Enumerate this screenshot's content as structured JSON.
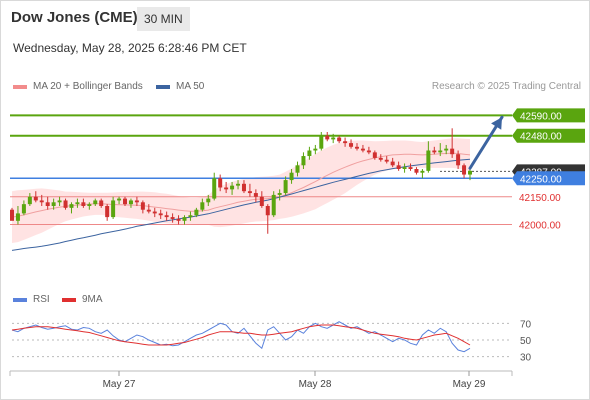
{
  "header": {
    "title": "Dow Jones (CME)",
    "interval": "30 MIN",
    "datetime": "Wednesday, May 28, 2025 6:28:46 PM CET"
  },
  "legend": {
    "ma20_label": "MA 20 + Bollinger Bands",
    "ma50_label": "MA 50",
    "credit": "Research © 2025 Trading Central"
  },
  "rsi_legend": {
    "rsi_label": "RSI",
    "ma_label": "9MA"
  },
  "colors": {
    "green": "#5aa50f",
    "blue": "#3f7fe0",
    "red": "#e03030",
    "ma50": "#3c64a0",
    "band": "#ffd0d0",
    "candle_up": "#5aa50f",
    "candle_down": "#d03030",
    "rsi": "#5a82dc",
    "rsi_ma": "#e03030"
  },
  "chart_data": [
    {
      "type": "candlestick",
      "ylim": [
        41700,
        42700
      ],
      "x_ticks": [
        "May 27",
        "May 28",
        "May 29"
      ],
      "levels": [
        {
          "value": 42590,
          "label": "42590.00",
          "style": "green-tag"
        },
        {
          "value": 42480,
          "label": "42480.00",
          "style": "green-tag"
        },
        {
          "value": 42287,
          "label": "42287.00",
          "style": "dark-tag"
        },
        {
          "value": 42250,
          "label": "42250.00",
          "style": "blue-tag"
        },
        {
          "value": 42150,
          "label": "42150.00",
          "style": "red-text"
        },
        {
          "value": 42000,
          "label": "42000.00",
          "style": "red-text"
        }
      ],
      "candles": [
        [
          42080,
          42090,
          42030,
          42020
        ],
        [
          42020,
          42100,
          42000,
          42060
        ],
        [
          42060,
          42130,
          42050,
          42110
        ],
        [
          42110,
          42170,
          42100,
          42150
        ],
        [
          42150,
          42180,
          42120,
          42130
        ],
        [
          42130,
          42160,
          42100,
          42120
        ],
        [
          42120,
          42150,
          42080,
          42100
        ],
        [
          42100,
          42140,
          42080,
          42120
        ],
        [
          42120,
          42150,
          42100,
          42130
        ],
        [
          42130,
          42140,
          42080,
          42090
        ],
        [
          42090,
          42120,
          42060,
          42110
        ],
        [
          42110,
          42140,
          42090,
          42120
        ],
        [
          42120,
          42140,
          42090,
          42100
        ],
        [
          42100,
          42120,
          42080,
          42110
        ],
        [
          42110,
          42140,
          42100,
          42130
        ],
        [
          42130,
          42140,
          42090,
          42100
        ],
        [
          42100,
          42110,
          42020,
          42040
        ],
        [
          42040,
          42150,
          42030,
          42130
        ],
        [
          42130,
          42150,
          42110,
          42140
        ],
        [
          42140,
          42150,
          42100,
          42110
        ],
        [
          42110,
          42140,
          42090,
          42130
        ],
        [
          42130,
          42150,
          42100,
          42120
        ],
        [
          42120,
          42130,
          42060,
          42080
        ],
        [
          42080,
          42110,
          42060,
          42070
        ],
        [
          42070,
          42090,
          42040,
          42060
        ],
        [
          42060,
          42080,
          42030,
          42050
        ],
        [
          42050,
          42070,
          42020,
          42040
        ],
        [
          42040,
          42060,
          42010,
          42030
        ],
        [
          42030,
          42050,
          42000,
          42020
        ],
        [
          42020,
          42050,
          42000,
          42040
        ],
        [
          42040,
          42070,
          42020,
          42050
        ],
        [
          42050,
          42090,
          42040,
          42080
        ],
        [
          42080,
          42140,
          42070,
          42120
        ],
        [
          42120,
          42160,
          42100,
          42140
        ],
        [
          42140,
          42280,
          42130,
          42250
        ],
        [
          42250,
          42270,
          42180,
          42200
        ],
        [
          42200,
          42230,
          42170,
          42190
        ],
        [
          42190,
          42230,
          42160,
          42210
        ],
        [
          42210,
          42240,
          42190,
          42220
        ],
        [
          42220,
          42240,
          42170,
          42180
        ],
        [
          42180,
          42220,
          42150,
          42170
        ],
        [
          42170,
          42190,
          42120,
          42150
        ],
        [
          42150,
          42180,
          42090,
          42100
        ],
        [
          42100,
          42110,
          41950,
          42050
        ],
        [
          42050,
          42180,
          42040,
          42160
        ],
        [
          42160,
          42190,
          42130,
          42170
        ],
        [
          42170,
          42260,
          42160,
          42240
        ],
        [
          42240,
          42300,
          42220,
          42280
        ],
        [
          42280,
          42340,
          42260,
          42320
        ],
        [
          42320,
          42390,
          42300,
          42370
        ],
        [
          42370,
          42420,
          42350,
          42400
        ],
        [
          42400,
          42430,
          42380,
          42410
        ],
        [
          42410,
          42500,
          42400,
          42480
        ],
        [
          42480,
          42500,
          42450,
          42460
        ],
        [
          42460,
          42490,
          42440,
          42470
        ],
        [
          42470,
          42480,
          42440,
          42450
        ],
        [
          42450,
          42470,
          42420,
          42440
        ],
        [
          42440,
          42460,
          42410,
          42420
        ],
        [
          42420,
          42440,
          42400,
          42410
        ],
        [
          42410,
          42430,
          42390,
          42400
        ],
        [
          42400,
          42420,
          42380,
          42390
        ],
        [
          42390,
          42400,
          42350,
          42360
        ],
        [
          42360,
          42380,
          42340,
          42350
        ],
        [
          42350,
          42370,
          42330,
          42340
        ],
        [
          42340,
          42360,
          42310,
          42320
        ],
        [
          42320,
          42340,
          42290,
          42300
        ],
        [
          42300,
          42330,
          42280,
          42310
        ],
        [
          42310,
          42330,
          42290,
          42300
        ],
        [
          42300,
          42310,
          42270,
          42280
        ],
        [
          42280,
          42300,
          42250,
          42290
        ],
        [
          42290,
          42450,
          42280,
          42400
        ],
        [
          42400,
          42420,
          42380,
          42390
        ],
        [
          42390,
          42440,
          42370,
          42400
        ],
        [
          42400,
          42430,
          42380,
          42410
        ],
        [
          42410,
          42520,
          42360,
          42380
        ],
        [
          42380,
          42400,
          42300,
          42320
        ],
        [
          42320,
          42330,
          42250,
          42270
        ],
        [
          42270,
          42300,
          42240,
          42290
        ]
      ],
      "ma50": [
        41860,
        41865,
        41870,
        41874,
        41878,
        41882,
        41888,
        41894,
        41900,
        41908,
        41915,
        41922,
        41928,
        41935,
        41942,
        41950,
        41956,
        41962,
        41968,
        41975,
        41982,
        41990,
        41996,
        42002,
        42008,
        42014,
        42020,
        42025,
        42030,
        42035,
        42040,
        42046,
        42052,
        42058,
        42066,
        42074,
        42082,
        42090,
        42098,
        42106,
        42113,
        42120,
        42126,
        42132,
        42140,
        42148,
        42156,
        42165,
        42174,
        42183,
        42192,
        42201,
        42210,
        42219,
        42228,
        42236,
        42244,
        42252,
        42260,
        42268,
        42276,
        42283,
        42290,
        42296,
        42302,
        42307,
        42312,
        42317,
        42321,
        42325,
        42329,
        42333,
        42337,
        42340,
        42344,
        42347,
        42350,
        42353
      ],
      "ma20": [
        42040,
        42045,
        42052,
        42060,
        42068,
        42075,
        42082,
        42088,
        42094,
        42098,
        42102,
        42105,
        42108,
        42110,
        42112,
        42112,
        42110,
        42108,
        42107,
        42106,
        42105,
        42104,
        42102,
        42098,
        42094,
        42090,
        42086,
        42082,
        42078,
        42074,
        42072,
        42072,
        42074,
        42078,
        42088,
        42096,
        42104,
        42112,
        42120,
        42126,
        42132,
        42136,
        42138,
        42140,
        42144,
        42150,
        42160,
        42172,
        42186,
        42200,
        42216,
        42232,
        42250,
        42266,
        42282,
        42296,
        42310,
        42322,
        42334,
        42344,
        42352,
        42360,
        42366,
        42372,
        42376,
        42378,
        42380,
        42380,
        42378,
        42376,
        42378,
        42380,
        42382,
        42384,
        42386,
        42384,
        42380,
        42376
      ],
      "band_width": [
        140,
        140,
        135,
        130,
        125,
        120,
        110,
        100,
        90,
        80,
        75,
        70,
        65,
        62,
        60,
        60,
        62,
        65,
        68,
        70,
        72,
        74,
        76,
        78,
        80,
        80,
        80,
        78,
        76,
        74,
        72,
        72,
        74,
        80,
        100,
        110,
        115,
        118,
        120,
        120,
        120,
        120,
        120,
        120,
        120,
        120,
        125,
        130,
        135,
        140,
        145,
        150,
        150,
        150,
        148,
        145,
        140,
        130,
        120,
        110,
        100,
        90,
        85,
        80,
        78,
        76,
        74,
        72,
        70,
        70,
        72,
        74,
        76,
        78,
        80,
        82,
        84,
        86
      ]
    },
    {
      "type": "line",
      "ylim": [
        20,
        80
      ],
      "y_ticks": [
        70,
        50,
        30
      ],
      "series": [
        {
          "name": "RSI",
          "values": [
            62,
            60,
            64,
            66,
            68,
            65,
            63,
            64,
            66,
            67,
            63,
            62,
            65,
            64,
            60,
            58,
            62,
            55,
            50,
            48,
            52,
            56,
            54,
            50,
            47,
            44,
            45,
            43,
            44,
            48,
            52,
            56,
            58,
            62,
            66,
            70,
            68,
            60,
            58,
            64,
            55,
            46,
            40,
            62,
            66,
            58,
            50,
            54,
            62,
            58,
            66,
            70,
            66,
            64,
            68,
            72,
            68,
            64,
            66,
            62,
            58,
            60,
            56,
            52,
            48,
            52,
            50,
            46,
            44,
            56,
            62,
            58,
            64,
            60,
            46,
            38,
            36,
            40
          ]
        },
        {
          "name": "9MA",
          "values": [
            62,
            63,
            64,
            65,
            66,
            66,
            66,
            65,
            64,
            63,
            62,
            61,
            60,
            59,
            57,
            55,
            53,
            51,
            49,
            48,
            47,
            46,
            45,
            44,
            44,
            44,
            44,
            45,
            46,
            47,
            49,
            51,
            53,
            56,
            58,
            60,
            60,
            60,
            59,
            58,
            58,
            57,
            56,
            56,
            57,
            58,
            59,
            60,
            62,
            64,
            66,
            67,
            68,
            68,
            68,
            67,
            66,
            65,
            64,
            62,
            60,
            58,
            57,
            56,
            55,
            54,
            52,
            51,
            50,
            52,
            54,
            56,
            57,
            58,
            55,
            52,
            48,
            44
          ]
        }
      ]
    }
  ]
}
